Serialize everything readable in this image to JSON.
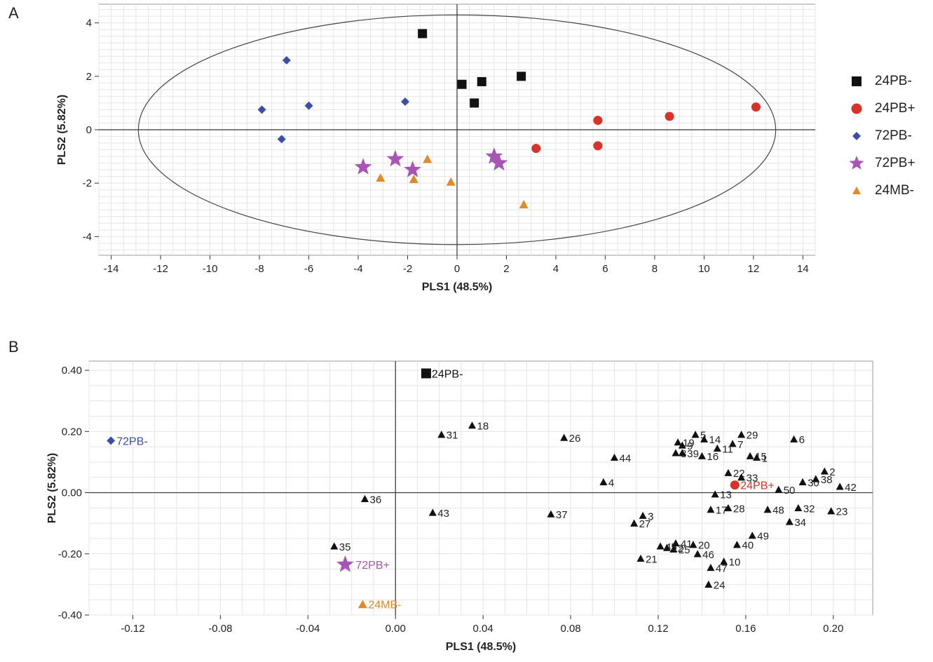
{
  "figure": {
    "panel_a": "A",
    "panel_b": "B"
  },
  "colors": {
    "24PB-": "#111111",
    "24PB+": "#d8322a",
    "72PB-": "#3b4ea8",
    "72PB+": "#a855b5",
    "24MB-": "#e08a2a",
    "variable": "#111111"
  },
  "chart_data": [
    {
      "type": "scatter",
      "panel": "A",
      "title": "",
      "xlabel": "PLS1 (48.5%)",
      "ylabel": "PLS2 (5.82%)",
      "xlim": [
        -14.5,
        14.5
      ],
      "ylim": [
        -4.7,
        4.7
      ],
      "xticks": [
        -14,
        -12,
        -10,
        -8,
        -6,
        -4,
        -2,
        0,
        2,
        4,
        6,
        8,
        10,
        12,
        14
      ],
      "yticks": [
        -4,
        -2,
        0,
        2,
        4
      ],
      "grid": true,
      "ellipse": {
        "cx": 0,
        "cy": 0,
        "rx": 12.9,
        "ry": 4.3
      },
      "legend_position": "right",
      "series": [
        {
          "name": "24PB-",
          "marker": "square",
          "color": "#111111",
          "points": [
            [
              -1.4,
              3.6
            ],
            [
              0.2,
              1.7
            ],
            [
              1.0,
              1.8
            ],
            [
              0.7,
              1.0
            ],
            [
              2.6,
              2.0
            ]
          ]
        },
        {
          "name": "24PB+",
          "marker": "circle",
          "color": "#d8322a",
          "points": [
            [
              3.2,
              -0.7
            ],
            [
              5.7,
              0.35
            ],
            [
              5.7,
              -0.6
            ],
            [
              8.6,
              0.5
            ],
            [
              12.1,
              0.85
            ]
          ]
        },
        {
          "name": "72PB-",
          "marker": "diamond",
          "color": "#3b4ea8",
          "points": [
            [
              -6.9,
              2.6
            ],
            [
              -7.9,
              0.75
            ],
            [
              -6.0,
              0.9
            ],
            [
              -2.1,
              1.05
            ],
            [
              -7.1,
              -0.35
            ]
          ]
        },
        {
          "name": "72PB+",
          "marker": "star",
          "color": "#a855b5",
          "points": [
            [
              -3.8,
              -1.4
            ],
            [
              -2.5,
              -1.1
            ],
            [
              -1.8,
              -1.5
            ],
            [
              1.5,
              -1.0
            ],
            [
              1.7,
              -1.25
            ]
          ]
        },
        {
          "name": "24MB-",
          "marker": "triangle",
          "color": "#e08a2a",
          "points": [
            [
              -3.1,
              -1.8
            ],
            [
              -1.75,
              -1.85
            ],
            [
              -1.2,
              -1.1
            ],
            [
              -0.25,
              -1.95
            ],
            [
              2.7,
              -2.8
            ]
          ]
        }
      ]
    },
    {
      "type": "scatter",
      "panel": "B",
      "title": "",
      "xlabel": "PLS1 (48.5%)",
      "ylabel": "PLS2 (5.82%)",
      "xlim": [
        -0.14,
        0.218
      ],
      "ylim": [
        -0.4,
        0.43
      ],
      "xticks": [
        -0.12,
        -0.08,
        -0.04,
        0.0,
        0.04,
        0.08,
        0.12,
        0.16,
        0.2
      ],
      "xtick_labels": [
        "-0.12",
        "-0.08",
        "-0.04",
        "0.00",
        "0.04",
        "0.08",
        "0.12",
        "0.16",
        "0.20"
      ],
      "yticks": [
        -0.4,
        -0.2,
        0.0,
        0.2,
        0.4
      ],
      "ytick_labels": [
        "-0.40",
        "-0.20",
        "0.00",
        "0.20",
        "0.40"
      ],
      "grid": true,
      "groups": [
        {
          "label": "24PB-",
          "marker": "square",
          "color": "#111111",
          "x": 0.014,
          "y": 0.39
        },
        {
          "label": "24PB+",
          "marker": "circle",
          "color": "#d8322a",
          "x": 0.155,
          "y": 0.025
        },
        {
          "label": "72PB-",
          "marker": "diamond",
          "color": "#3b4ea8",
          "x": -0.13,
          "y": 0.17
        },
        {
          "label": "72PB+",
          "marker": "star",
          "color": "#a855b5",
          "x": -0.023,
          "y": -0.235
        },
        {
          "label": "24MB-",
          "marker": "triangle",
          "color": "#e08a2a",
          "x": -0.015,
          "y": -0.365
        }
      ],
      "variables": [
        {
          "label": "1",
          "x": 0.165,
          "y": 0.115
        },
        {
          "label": "2",
          "x": 0.196,
          "y": 0.07
        },
        {
          "label": "3",
          "x": 0.113,
          "y": -0.075
        },
        {
          "label": "4",
          "x": 0.095,
          "y": 0.035
        },
        {
          "label": "5",
          "x": 0.137,
          "y": 0.19
        },
        {
          "label": "6",
          "x": 0.182,
          "y": 0.175
        },
        {
          "label": "7",
          "x": 0.154,
          "y": 0.16
        },
        {
          "label": "8",
          "x": 0.128,
          "y": 0.13
        },
        {
          "label": "9",
          "x": 0.131,
          "y": 0.155
        },
        {
          "label": "10",
          "x": 0.15,
          "y": -0.225
        },
        {
          "label": "11",
          "x": 0.147,
          "y": 0.145
        },
        {
          "label": "12",
          "x": 0.124,
          "y": -0.18
        },
        {
          "label": "13",
          "x": 0.146,
          "y": -0.005
        },
        {
          "label": "14",
          "x": 0.141,
          "y": 0.175
        },
        {
          "label": "15",
          "x": 0.162,
          "y": 0.12
        },
        {
          "label": "16",
          "x": 0.14,
          "y": 0.12
        },
        {
          "label": "17",
          "x": 0.144,
          "y": -0.055
        },
        {
          "label": "18",
          "x": 0.035,
          "y": 0.22
        },
        {
          "label": "19",
          "x": 0.129,
          "y": 0.165
        },
        {
          "label": "20",
          "x": 0.136,
          "y": -0.17
        },
        {
          "label": "21",
          "x": 0.112,
          "y": -0.215
        },
        {
          "label": "22",
          "x": 0.152,
          "y": 0.065
        },
        {
          "label": "23",
          "x": 0.199,
          "y": -0.06
        },
        {
          "label": "24",
          "x": 0.143,
          "y": -0.3
        },
        {
          "label": "25",
          "x": 0.127,
          "y": -0.185
        },
        {
          "label": "26",
          "x": 0.077,
          "y": 0.18
        },
        {
          "label": "27",
          "x": 0.109,
          "y": -0.1
        },
        {
          "label": "28",
          "x": 0.152,
          "y": -0.05
        },
        {
          "label": "29",
          "x": 0.158,
          "y": 0.19
        },
        {
          "label": "30",
          "x": 0.186,
          "y": 0.035
        },
        {
          "label": "31",
          "x": 0.021,
          "y": 0.19
        },
        {
          "label": "32",
          "x": 0.184,
          "y": -0.05
        },
        {
          "label": "33",
          "x": 0.158,
          "y": 0.05
        },
        {
          "label": "34",
          "x": 0.18,
          "y": -0.095
        },
        {
          "label": "35",
          "x": -0.028,
          "y": -0.175
        },
        {
          "label": "36",
          "x": -0.014,
          "y": -0.02
        },
        {
          "label": "37",
          "x": 0.071,
          "y": -0.07
        },
        {
          "label": "38",
          "x": 0.192,
          "y": 0.045
        },
        {
          "label": "39",
          "x": 0.131,
          "y": 0.13
        },
        {
          "label": "40",
          "x": 0.156,
          "y": -0.17
        },
        {
          "label": "41",
          "x": 0.128,
          "y": -0.165
        },
        {
          "label": "42",
          "x": 0.203,
          "y": 0.02
        },
        {
          "label": "43",
          "x": 0.017,
          "y": -0.065
        },
        {
          "label": "44",
          "x": 0.1,
          "y": 0.115
        },
        {
          "label": "45",
          "x": 0.121,
          "y": -0.175
        },
        {
          "label": "46",
          "x": 0.138,
          "y": -0.2
        },
        {
          "label": "47",
          "x": 0.144,
          "y": -0.245
        },
        {
          "label": "48",
          "x": 0.17,
          "y": -0.055
        },
        {
          "label": "49",
          "x": 0.163,
          "y": -0.14
        },
        {
          "label": "50",
          "x": 0.175,
          "y": 0.01
        }
      ]
    }
  ]
}
